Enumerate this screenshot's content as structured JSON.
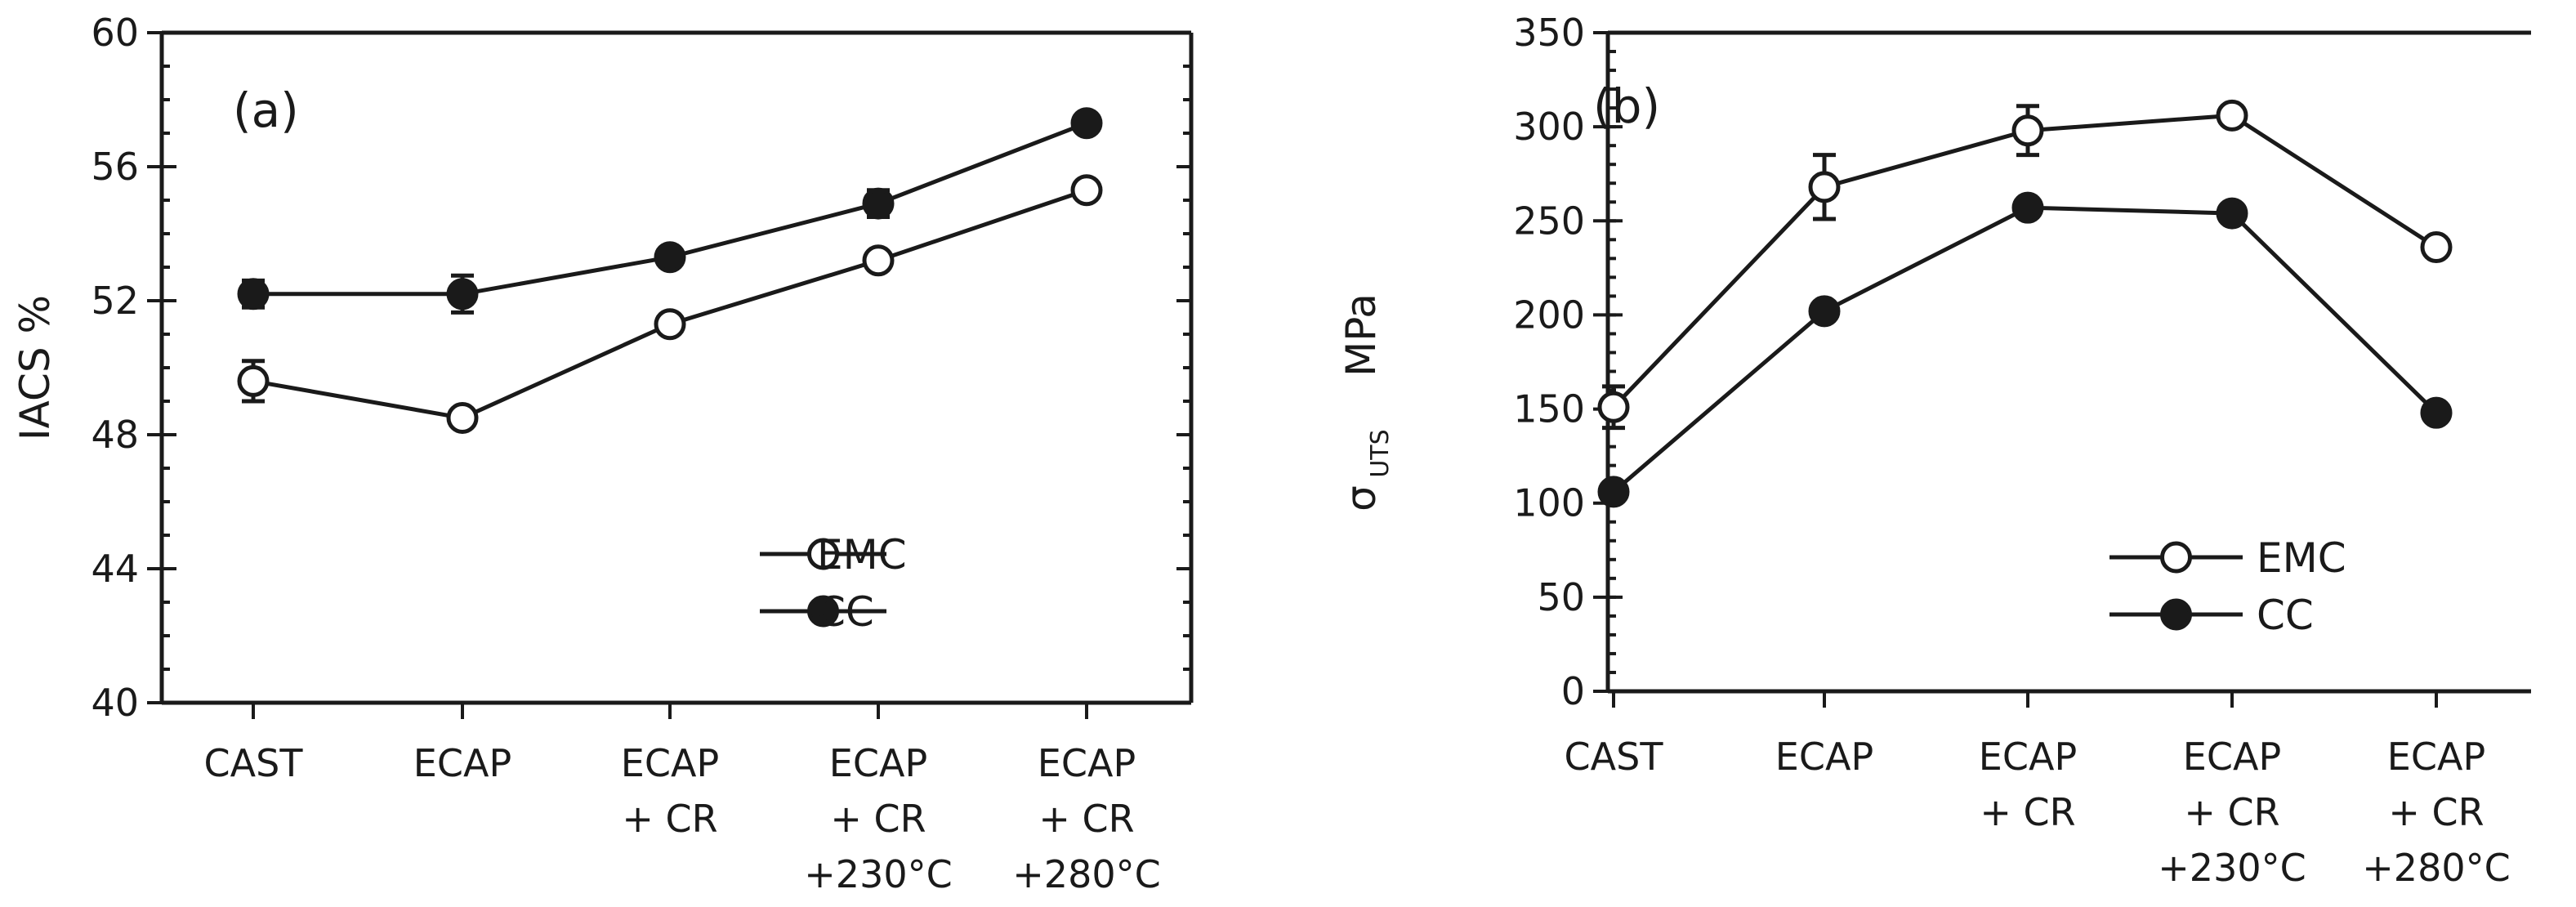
{
  "chart_data": [
    {
      "panel_label": "(a)",
      "type": "line",
      "categories": [
        [
          "CAST"
        ],
        [
          "ECAP"
        ],
        [
          "ECAP",
          "+ CR"
        ],
        [
          "ECAP",
          "+ CR",
          "+230°C"
        ],
        [
          "ECAP",
          "+ CR",
          "+280°C"
        ]
      ],
      "ylabel": "IACS %",
      "ylim": [
        40,
        60
      ],
      "yticks": [
        40,
        44,
        48,
        52,
        56,
        60
      ],
      "yminor_step": 1,
      "series": [
        {
          "name": "EMC",
          "marker": "open-circle",
          "values": [
            49.6,
            48.5,
            51.3,
            53.2,
            55.3
          ],
          "errors": [
            0.6,
            0.15,
            0.15,
            0.15,
            0.15
          ]
        },
        {
          "name": "CC",
          "marker": "filled-circle",
          "values": [
            52.2,
            52.2,
            53.3,
            54.9,
            57.3
          ],
          "errors": [
            0.4,
            0.55,
            0.15,
            0.4,
            0.15
          ]
        }
      ],
      "legend_position": "bottom-right"
    },
    {
      "panel_label": "(b)",
      "type": "line",
      "categories": [
        [
          "CAST"
        ],
        [
          "ECAP"
        ],
        [
          "ECAP",
          "+ CR"
        ],
        [
          "ECAP",
          "+ CR",
          "+230°C"
        ],
        [
          "ECAP",
          "+ CR",
          "+280°C"
        ]
      ],
      "ylabel": {
        "symbol": "σ",
        "subscript": "UTS",
        "unit": "MPa"
      },
      "ylim": [
        0,
        350
      ],
      "yticks": [
        0,
        50,
        100,
        150,
        200,
        250,
        300,
        350
      ],
      "yminor_step": 10,
      "series": [
        {
          "name": "EMC",
          "marker": "open-circle",
          "values": [
            151,
            268,
            298,
            306,
            236
          ],
          "errors": [
            11,
            17,
            13,
            0,
            0
          ]
        },
        {
          "name": "CC",
          "marker": "filled-circle",
          "values": [
            106,
            202,
            257,
            254,
            148
          ],
          "errors": [
            0,
            0,
            0,
            0,
            0
          ]
        }
      ],
      "legend_position": "bottom-right"
    }
  ]
}
